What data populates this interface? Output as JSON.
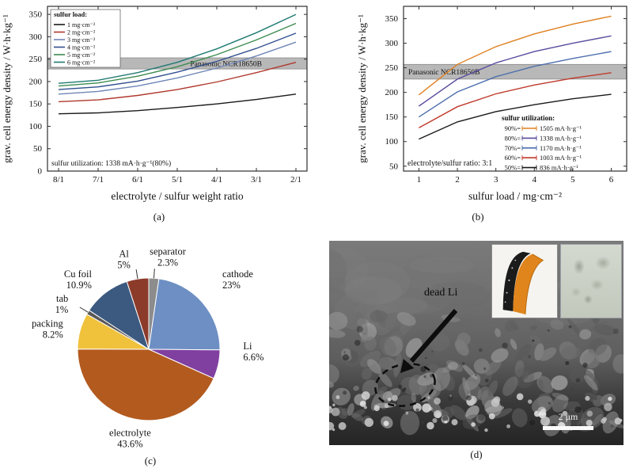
{
  "captions": {
    "a": "(a)",
    "b": "(b)",
    "c": "(c)",
    "d": "(d)"
  },
  "chart_data": [
    {
      "id": "panel-a",
      "type": "line",
      "xlabel": "electrolyte / sulfur weight ratio",
      "ylabel": "grav. cell energy density / W·h·kg⁻¹",
      "categories": [
        "8/1",
        "7/1",
        "6/1",
        "5/1",
        "4/1",
        "3/1",
        "2/1"
      ],
      "ylim": [
        0,
        368
      ],
      "yticks": [
        0,
        50,
        100,
        150,
        200,
        250,
        300,
        350
      ],
      "grid": false,
      "legend_title": "sulfur load:",
      "legend_position": "top-left",
      "annotation": "sulfur utilization: 1338 mA·h·g⁻¹(80%)",
      "band": {
        "label": "Panasonic NCR18650B",
        "from": 228,
        "to": 253,
        "color": "#b8b8b8"
      },
      "series": [
        {
          "name": "1 mg·cm⁻²",
          "color": "#1a1a1a",
          "values": [
            128,
            130,
            135,
            142,
            150,
            160,
            172
          ]
        },
        {
          "name": "2 mg·cm⁻²",
          "color": "#b03a2e",
          "values": [
            155,
            159,
            169,
            182,
            199,
            220,
            243
          ]
        },
        {
          "name": "3 mg·cm⁻²",
          "color": "#6f86b8",
          "values": [
            172,
            178,
            190,
            208,
            230,
            257,
            288
          ]
        },
        {
          "name": "4 mg·cm⁻²",
          "color": "#31508f",
          "values": [
            182,
            188,
            201,
            221,
            245,
            274,
            308
          ]
        },
        {
          "name": "5 mg·cm⁻²",
          "color": "#3d8b50",
          "values": [
            190,
            197,
            212,
            233,
            260,
            293,
            330
          ]
        },
        {
          "name": "6 mg·cm⁻²",
          "color": "#1f7a72",
          "values": [
            196,
            203,
            220,
            243,
            273,
            309,
            350
          ]
        }
      ]
    },
    {
      "id": "panel-b",
      "type": "line",
      "xlabel": "sulfur load / mg·cm⁻²",
      "ylabel": "grav. cell energy density / W·h·kg⁻¹",
      "x": [
        1,
        2,
        3,
        4,
        5,
        6
      ],
      "xlim": [
        0.6,
        6.4
      ],
      "ylim": [
        40,
        375
      ],
      "yticks": [
        50,
        100,
        150,
        200,
        250,
        300,
        350
      ],
      "grid": false,
      "legend_title": "sulfur utilization:",
      "legend_position": "bottom-right",
      "annotation": "electrolyte/sulfur ratio: 3:1",
      "band": {
        "label": "Panasonic NCR18650B",
        "from": 227,
        "to": 257,
        "color": "#b8b8b8"
      },
      "series": [
        {
          "name": "90%",
          "detail": "1505 mA·h·g⁻¹",
          "color": "#e08020",
          "values": [
            195,
            257,
            293,
            319,
            339,
            355
          ]
        },
        {
          "name": "80%",
          "detail": "1338 mA·h·g⁻¹",
          "color": "#5b4a9e",
          "values": [
            172,
            227,
            260,
            283,
            300,
            315
          ]
        },
        {
          "name": "70%",
          "detail": "1170 mA·h·g⁻¹",
          "color": "#4d6fae",
          "values": [
            150,
            201,
            232,
            253,
            269,
            283
          ]
        },
        {
          "name": "60%",
          "detail": "1003 mA·h·g⁻¹",
          "color": "#c0392b",
          "values": [
            128,
            171,
            197,
            215,
            229,
            240
          ]
        },
        {
          "name": "50%",
          "detail": "836 mA·h·g⁻¹",
          "color": "#1a1a1a",
          "values": [
            105,
            140,
            161,
            175,
            187,
            196
          ]
        }
      ]
    },
    {
      "id": "panel-c",
      "type": "pie",
      "direction": "clockwise",
      "start_angle_deg": 0,
      "slices": [
        {
          "name": "separator",
          "pct": "2.3%",
          "value": 2.3,
          "color": "#8c8c8c"
        },
        {
          "name": "cathode",
          "pct": "23%",
          "value": 23,
          "color": "#6d8fc3"
        },
        {
          "name": "Li",
          "pct": "6.6%",
          "value": 6.6,
          "color": "#8040a0"
        },
        {
          "name": "electrolyte",
          "pct": "43.6%",
          "value": 43.6,
          "color": "#b35a1f"
        },
        {
          "name": "packing",
          "pct": "8.2%",
          "value": 8.2,
          "color": "#f0c23c"
        },
        {
          "name": "tab",
          "pct": "1%",
          "value": 1,
          "color": "#595959"
        },
        {
          "name": "Cu foil",
          "pct": "10.9%",
          "value": 10.9,
          "color": "#3c5a80"
        },
        {
          "name": "Al",
          "pct": "5%",
          "value": 5,
          "color": "#8c3b2b"
        }
      ]
    }
  ],
  "panel_d": {
    "annotation": "dead Li",
    "scale_label": "2 μm"
  }
}
